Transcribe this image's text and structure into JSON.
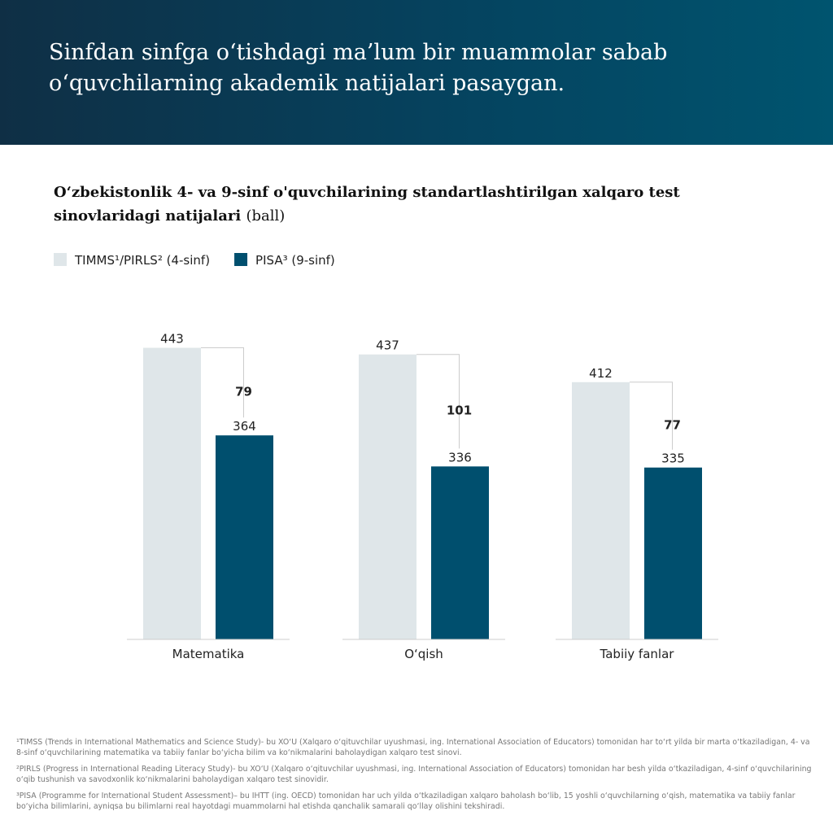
{
  "header": {
    "title": "Sinfdan sinfga o‘tishdagi ma’lum bir muammolar sabab o‘quvchilarning akademik natijalari pasaygan."
  },
  "chart_data": {
    "type": "bar",
    "title": "O‘zbekistonlik 4- va 9-sinf o'quvchilarining standartlashtirilgan xalqaro test sinovlaridagi natijalari",
    "unit": "(ball)",
    "categories": [
      "Matematika",
      "O‘qish",
      "Tabiiy fanlar"
    ],
    "series": [
      {
        "name": "TIMMS¹/PIRLS² (4-sinf)",
        "color": "#dfe6e9",
        "values": [
          443,
          437,
          412
        ]
      },
      {
        "name": "PISA³ (9-sinf)",
        "color": "#004f6e",
        "values": [
          364,
          336,
          335
        ]
      }
    ],
    "differences": [
      79,
      101,
      77
    ],
    "ylim": [
      180,
      450
    ]
  },
  "footnotes": [
    "¹TIMSS (Trends in International Mathematics and Science Study)- bu XO‘U (Xalqaro o‘qituvchilar uyushmasi, ing. International Association of Educators) tomonidan har to‘rt yilda bir marta o‘tkaziladigan, 4- va 8-sinf o‘quvchilarining matematika va tabiiy fanlar bo‘yicha bilim va ko‘nikmalarini baholaydigan xalqaro test sinovi.",
    "²PIRLS (Progress in International Reading Literacy Study)- bu XO‘U (Xalqaro o‘qituvchilar uyushmasi, ing. International Association of Educators) tomonidan har besh yilda o‘tkaziladigan, 4-sinf o‘quvchilarining o‘qib tushunish va savodxonlik ko‘nikmalarini baholaydigan xalqaro test sinovidir.",
    "³PISA (Programme for International Student Assessment)– bu IHTT (ing. OECD) tomonidan har uch yilda o‘tkaziladigan xalqaro baholash bo‘lib, 15 yoshli o‘quvchilarning o‘qish, matematika va tabiiy fanlar bo‘yicha bilimlarini, ayniqsa bu bilimlarni real hayotdagi muammolarni hal etishda qanchalik samarali qo‘llay olishini tekshiradi."
  ]
}
